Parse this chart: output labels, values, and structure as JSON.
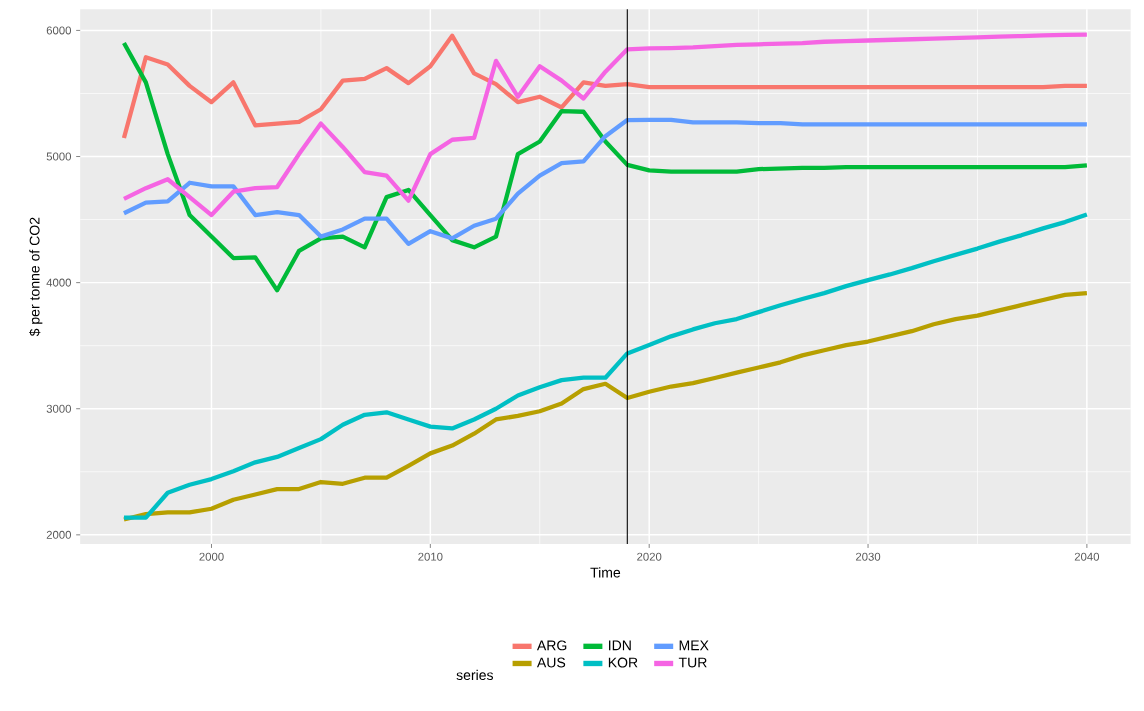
{
  "chart_data": {
    "type": "line",
    "xlabel": "Time",
    "ylabel": "$ per tonne of CO2",
    "legend_title": "series",
    "x": [
      1996,
      1997,
      1998,
      1999,
      2000,
      2001,
      2002,
      2003,
      2004,
      2005,
      2006,
      2007,
      2008,
      2009,
      2010,
      2011,
      2012,
      2013,
      2014,
      2015,
      2016,
      2017,
      2018,
      2019,
      2020,
      2021,
      2022,
      2023,
      2024,
      2025,
      2026,
      2027,
      2028,
      2029,
      2030,
      2031,
      2032,
      2033,
      2034,
      2035,
      2036,
      2037,
      2038,
      2039,
      2040
    ],
    "series": [
      {
        "name": "ARG",
        "color": "#f8766d",
        "values": [
          5147,
          5787,
          5730,
          5560,
          5431,
          5588,
          5247,
          5261,
          5275,
          5375,
          5602,
          5616,
          5701,
          5582,
          5716,
          5957,
          5659,
          5574,
          5431,
          5474,
          5389,
          5588,
          5560,
          5574,
          5550,
          5550,
          5550,
          5550,
          5550,
          5550,
          5550,
          5550,
          5550,
          5550,
          5550,
          5550,
          5550,
          5550,
          5550,
          5550,
          5550,
          5550,
          5550,
          5560,
          5560
        ]
      },
      {
        "name": "AUS",
        "color": "#b79f00",
        "values": [
          2122,
          2164,
          2178,
          2178,
          2207,
          2278,
          2320,
          2363,
          2363,
          2419,
          2405,
          2453,
          2453,
          2547,
          2646,
          2708,
          2802,
          2915,
          2943,
          2980,
          3042,
          3156,
          3198,
          3085,
          3135,
          3176,
          3203,
          3244,
          3286,
          3327,
          3368,
          3423,
          3464,
          3505,
          3533,
          3574,
          3615,
          3670,
          3711,
          3738,
          3780,
          3821,
          3862,
          3903,
          3917
        ]
      },
      {
        "name": "IDN",
        "color": "#00ba38",
        "values": [
          5900,
          5588,
          5019,
          4536,
          4365,
          4195,
          4200,
          3939,
          4252,
          4351,
          4365,
          4280,
          4678,
          4735,
          4536,
          4337,
          4280,
          4365,
          5019,
          5119,
          5360,
          5355,
          5119,
          4934,
          4890,
          4880,
          4880,
          4880,
          4880,
          4900,
          4905,
          4910,
          4910,
          4915,
          4915,
          4915,
          4915,
          4915,
          4915,
          4915,
          4915,
          4915,
          4915,
          4915,
          4930
        ]
      },
      {
        "name": "KOR",
        "color": "#00bfc4",
        "values": [
          2136,
          2136,
          2334,
          2397,
          2442,
          2504,
          2575,
          2618,
          2688,
          2759,
          2873,
          2952,
          2972,
          2915,
          2858,
          2844,
          2915,
          3000,
          3105,
          3170,
          3227,
          3246,
          3246,
          3439,
          3505,
          3574,
          3629,
          3678,
          3711,
          3766,
          3821,
          3870,
          3917,
          3972,
          4020,
          4065,
          4115,
          4170,
          4220,
          4270,
          4325,
          4375,
          4430,
          4480,
          4540
        ]
      },
      {
        "name": "MEX",
        "color": "#619cff",
        "values": [
          4550,
          4635,
          4644,
          4792,
          4763,
          4763,
          4536,
          4559,
          4536,
          4365,
          4422,
          4507,
          4507,
          4308,
          4408,
          4351,
          4451,
          4507,
          4706,
          4849,
          4948,
          4962,
          5161,
          5289,
          5290,
          5290,
          5270,
          5270,
          5270,
          5265,
          5265,
          5255,
          5255,
          5255,
          5255,
          5255,
          5255,
          5255,
          5255,
          5255,
          5255,
          5255,
          5255,
          5255,
          5255
        ]
      },
      {
        "name": "TUR",
        "color": "#f564e3",
        "values": [
          4664,
          4749,
          4820,
          4678,
          4536,
          4721,
          4749,
          4758,
          5019,
          5261,
          5076,
          4877,
          4849,
          4650,
          5019,
          5133,
          5147,
          5758,
          5474,
          5716,
          5602,
          5460,
          5673,
          5850,
          5858,
          5860,
          5865,
          5875,
          5885,
          5890,
          5895,
          5900,
          5910,
          5915,
          5920,
          5925,
          5930,
          5935,
          5940,
          5945,
          5950,
          5955,
          5960,
          5965,
          5967
        ]
      }
    ],
    "xlim": [
      1994,
      2042
    ],
    "ylim": [
      1928,
      6167
    ],
    "xticks": [
      2000,
      2010,
      2020,
      2030,
      2040
    ],
    "yticks": [
      2000,
      3000,
      4000,
      5000,
      6000
    ],
    "ref_lines": [
      {
        "axis": "x",
        "value": 2019,
        "color": "#000000"
      }
    ],
    "grid": true,
    "legend": "bottom",
    "line_style": "solid",
    "marker": "none"
  }
}
